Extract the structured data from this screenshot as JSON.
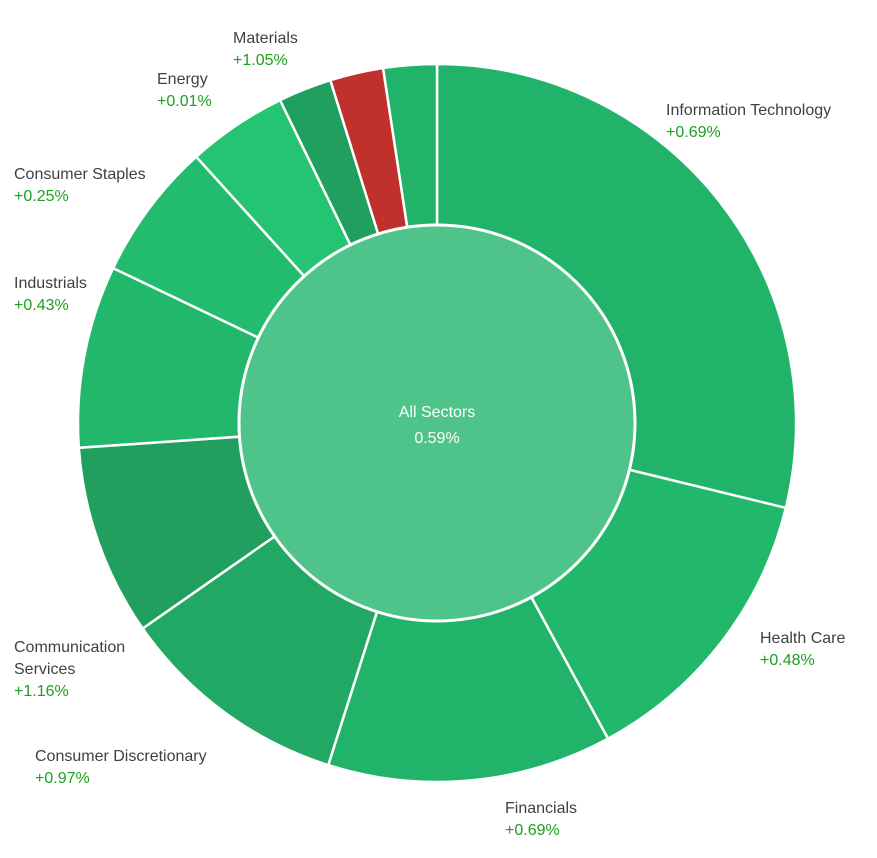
{
  "chart_data": {
    "type": "pie",
    "subtype": "donut",
    "center": {
      "label": "All Sectors",
      "value": "0.59%"
    },
    "segments": [
      {
        "name": "Information Technology",
        "change": "+0.69%",
        "weight": 28.8,
        "color": "#22b36a"
      },
      {
        "name": "Health Care",
        "change": "+0.48%",
        "weight": 13.3,
        "color": "#22b86c"
      },
      {
        "name": "Financials",
        "change": "+0.69%",
        "weight": 12.8,
        "color": "#22b36a"
      },
      {
        "name": "Consumer Discretionary",
        "change": "+0.97%",
        "weight": 10.4,
        "color": "#21a864"
      },
      {
        "name": "Communication Services",
        "change": "+1.16%",
        "weight": 8.6,
        "color": "#209f5f"
      },
      {
        "name": "Industrials",
        "change": "+0.43%",
        "weight": 8.2,
        "color": "#22b86c"
      },
      {
        "name": "Consumer Staples",
        "change": "+0.25%",
        "weight": 6.2,
        "color": "#23bc6f"
      },
      {
        "name": "Energy",
        "change": "+0.01%",
        "weight": 4.5,
        "color": "#24c473"
      },
      {
        "name": "",
        "change": "",
        "weight": 2.4,
        "color": "#209f5f"
      },
      {
        "name": "Materials",
        "change": "+1.05%",
        "weight": 2.4,
        "color": "#c0302c"
      },
      {
        "name": "",
        "change": "",
        "weight": 2.4,
        "color": "#22b36a"
      }
    ],
    "colors": {
      "center_fill": "#4ec48a",
      "positive_text": "#1e9e1e",
      "label_text": "#404040",
      "separator": "#ffffff"
    }
  }
}
